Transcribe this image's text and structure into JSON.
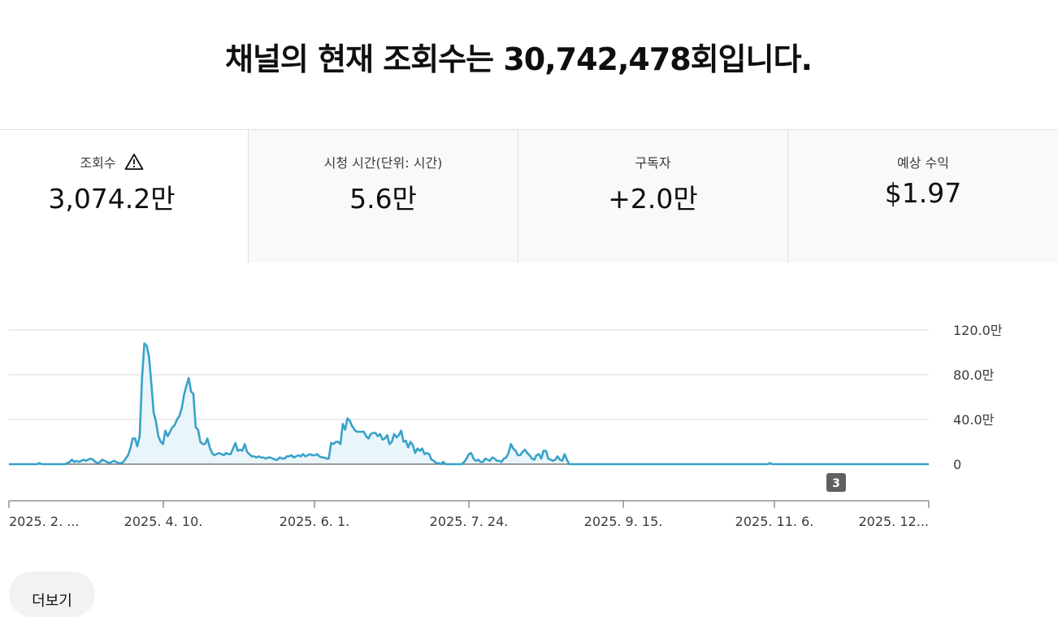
{
  "headline": "채널의 현재 조회수는 30,742,478회입니다.",
  "metrics": [
    {
      "label": "조회수",
      "value": "3,074.2만",
      "icon": "warning-triangle-icon",
      "active": true
    },
    {
      "label": "시청 시간(단위: 시간)",
      "value": "5.6만",
      "active": false
    },
    {
      "label": "구독자",
      "value": "+2.0만",
      "active": false
    },
    {
      "label": "예상 수익",
      "value": "$1.97",
      "active": false
    }
  ],
  "more_button": "더보기",
  "colors": {
    "line": "#37a2c9",
    "fill": "#eaf5fa",
    "grid": "#e5e5e5",
    "axis": "#909090",
    "badge": "#606060"
  },
  "chart_data": {
    "type": "area",
    "x_ticks": [
      "2025. 2. ...",
      "2025. 4. 10.",
      "2025. 6. 1.",
      "2025. 7. 24.",
      "2025. 9. 15.",
      "2025. 11. 6.",
      "2025. 12..."
    ],
    "y_ticks": [
      "120.0만",
      "80.0만",
      "40.0만",
      "0"
    ],
    "ylim": [
      0,
      120
    ],
    "y_unit": "만",
    "annotation_badge": "3",
    "series": [
      {
        "values": [
          0,
          0,
          0,
          0,
          0,
          0,
          0,
          0,
          0,
          0,
          0,
          0,
          0,
          1,
          0,
          0,
          0,
          0,
          0,
          0,
          0,
          0,
          0,
          0,
          0,
          1,
          2,
          4,
          2,
          3,
          2,
          3,
          4,
          3,
          4,
          5,
          4,
          2,
          1,
          2,
          4,
          3,
          2,
          1,
          2,
          3,
          2,
          1,
          1,
          2,
          5,
          8,
          14,
          23,
          23,
          16,
          25,
          77,
          108,
          106,
          96,
          72,
          46,
          38,
          25,
          20,
          18,
          30,
          25,
          29,
          33,
          35,
          40,
          43,
          50,
          62,
          70,
          77,
          65,
          63,
          33,
          31,
          20,
          18,
          18,
          23,
          15,
          10,
          8,
          9,
          10,
          9,
          8,
          10,
          9,
          9,
          14,
          19,
          12,
          13,
          12,
          18,
          11,
          9,
          7,
          7,
          6,
          7,
          6,
          6,
          5,
          6,
          6,
          5,
          4,
          4,
          6,
          5,
          5,
          7,
          7,
          8,
          6,
          7,
          8,
          7,
          9,
          7,
          8,
          9,
          8,
          8,
          9,
          7,
          6,
          6,
          5,
          5,
          19,
          18,
          20,
          20,
          18,
          36,
          31,
          41,
          39,
          34,
          31,
          29,
          29,
          29,
          29,
          25,
          23,
          27,
          28,
          28,
          25,
          27,
          22,
          23,
          26,
          18,
          20,
          27,
          24,
          26,
          30,
          20,
          21,
          15,
          20,
          17,
          10,
          14,
          12,
          14,
          9,
          10,
          9,
          4,
          3,
          1,
          1,
          0,
          2,
          0,
          0,
          0,
          0,
          0,
          0,
          0,
          0,
          2,
          5,
          9,
          10,
          5,
          3,
          4,
          2,
          2,
          5,
          4,
          3,
          6,
          5,
          3,
          3,
          2,
          5,
          6,
          10,
          18,
          14,
          12,
          8,
          8,
          11,
          13,
          10,
          8,
          5,
          4,
          8,
          9,
          5,
          12,
          12,
          5,
          4,
          3,
          4,
          7,
          4,
          3,
          9,
          4,
          0,
          0,
          0,
          0,
          0,
          0,
          0,
          0,
          0,
          0,
          0,
          0,
          0,
          0,
          0,
          0,
          0,
          0,
          0,
          0,
          0,
          0,
          0,
          0,
          0,
          0,
          0,
          0,
          0,
          0,
          0,
          0,
          0,
          0,
          0,
          0,
          0,
          0,
          0,
          0,
          0,
          0,
          0,
          0,
          0,
          0,
          0,
          0,
          0,
          0,
          0,
          0,
          0,
          0,
          0,
          0,
          0,
          0,
          0,
          0,
          0,
          0,
          0,
          0,
          0,
          0,
          0,
          0,
          0,
          0,
          0,
          0,
          0,
          0,
          0,
          0,
          0,
          0,
          0,
          0,
          0,
          0,
          0,
          0,
          0,
          0,
          1,
          0,
          0,
          0,
          0,
          0,
          0,
          0,
          0,
          0,
          0,
          0,
          0,
          0,
          0,
          0,
          0,
          0,
          0,
          0,
          0,
          0,
          0,
          0,
          0,
          0,
          0,
          0,
          0,
          0,
          0,
          0,
          0,
          0,
          0,
          0,
          0,
          0,
          0,
          0,
          0,
          0,
          0,
          0,
          0,
          0,
          0,
          0,
          0,
          0,
          0,
          0,
          0,
          0,
          0,
          0,
          0,
          0,
          0,
          0,
          0,
          0,
          0,
          0,
          0,
          0,
          0,
          0,
          0
        ]
      }
    ],
    "grid": true
  }
}
